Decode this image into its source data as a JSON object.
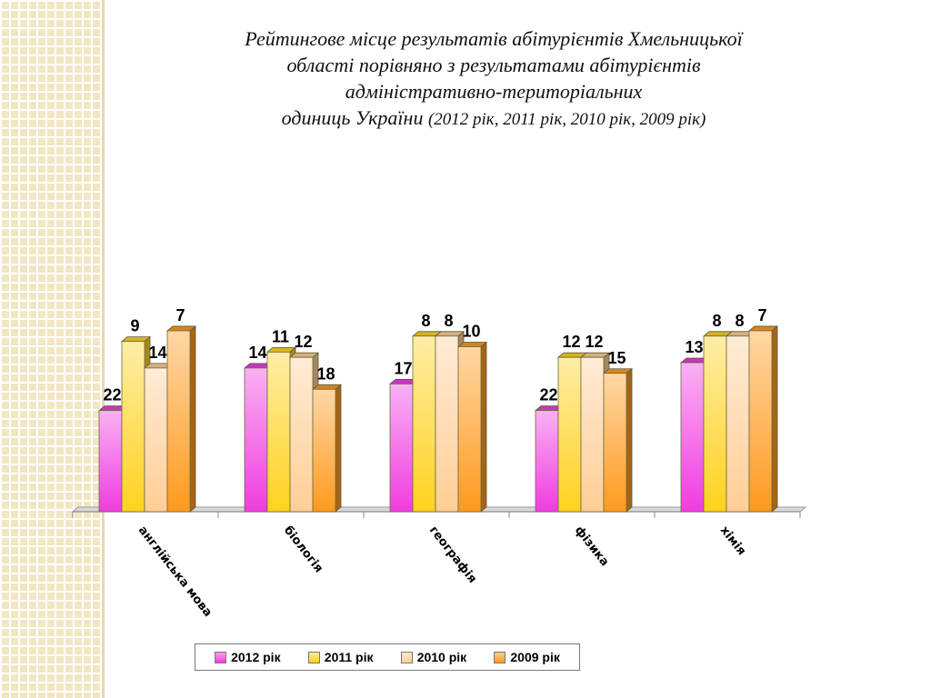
{
  "title": {
    "line1": "Рейтингове місце результатів абітурієнтів Хмельницької",
    "line2": "області порівняно  з результатами абітурієнтів",
    "line3": "адміністративно-територіальних",
    "line4": "одиниць України",
    "years": "(2012 рік, 2011 рік, 2010 рік, 2009 рік)"
  },
  "chart_data": {
    "type": "bar",
    "categories": [
      "англійська мова",
      "біологія",
      "географія",
      "фізика",
      "хімія"
    ],
    "series": [
      {
        "name": "2012 рік",
        "values": [
          22,
          14,
          17,
          22,
          13
        ],
        "color": "#f03ce0"
      },
      {
        "name": "2011 рік",
        "values": [
          9,
          11,
          8,
          12,
          8
        ],
        "color": "#ffd21e"
      },
      {
        "name": "2010 рік",
        "values": [
          14,
          12,
          8,
          12,
          8
        ],
        "color": "#ffce96"
      },
      {
        "name": "2009 рік",
        "values": [
          7,
          18,
          10,
          15,
          7
        ],
        "color": "#ff9a1e"
      }
    ],
    "value_axis": "rank (inverted: lower rank = taller bar)",
    "legend_position": "bottom",
    "grid": false
  }
}
